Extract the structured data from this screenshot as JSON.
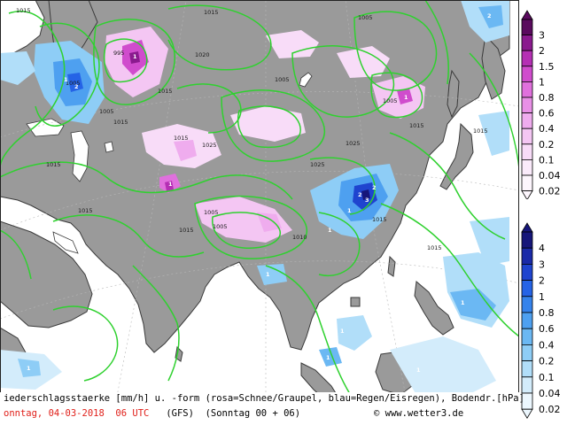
{
  "footer": {
    "line1": "iederschlagsstaerke [mm/h] u. -form (rosa=Schnee/Graupel, blau=Regen/Eisregen), Bodendr.[hPa]",
    "date": "onntag, 04-03-2018  06 UTC",
    "model": "(GFS)  (Sonntag 00 + 06)",
    "copyright": "© www.wetter3.de"
  },
  "legend_snow": {
    "labels": [
      "3",
      "2",
      "1.5",
      "1",
      "0.8",
      "0.6",
      "0.4",
      "0.2",
      "0.1",
      "0.04",
      "0.02"
    ],
    "colors": [
      "#5a0a5e",
      "#8a1a8e",
      "#b52fb4",
      "#d04ccd",
      "#e070dd",
      "#e890e6",
      "#efacee",
      "#f4c6f3",
      "#f8dcf8",
      "#fbebfb",
      "#fdf6fd"
    ]
  },
  "legend_rain": {
    "labels": [
      "4",
      "3",
      "2",
      "1",
      "0.8",
      "0.6",
      "0.4",
      "0.2",
      "0.1",
      "0.04",
      "0.02"
    ],
    "colors": [
      "#16167a",
      "#1a2aa8",
      "#1f44cf",
      "#2563e6",
      "#3583ec",
      "#4ea0f0",
      "#6bb8f3",
      "#8ecdf6",
      "#b1def9",
      "#d3ecfb",
      "#ecf7fe"
    ]
  },
  "isobars": {
    "labels": [
      "1015",
      "1005",
      "995",
      "1005",
      "1015",
      "1015",
      "1020",
      "1015",
      "1005",
      "1005",
      "1005",
      "1015",
      "1025",
      "1025",
      "1025",
      "1015",
      "1015",
      "1005",
      "1005",
      "1015",
      "1015",
      "1015",
      "1010",
      "1015",
      "1015"
    ]
  },
  "map_marks": [
    "1",
    "2",
    "1",
    "2",
    "3",
    "1",
    "2",
    "1",
    "1",
    "1",
    "1",
    "1",
    "1",
    "2",
    "1",
    "1",
    "1"
  ]
}
